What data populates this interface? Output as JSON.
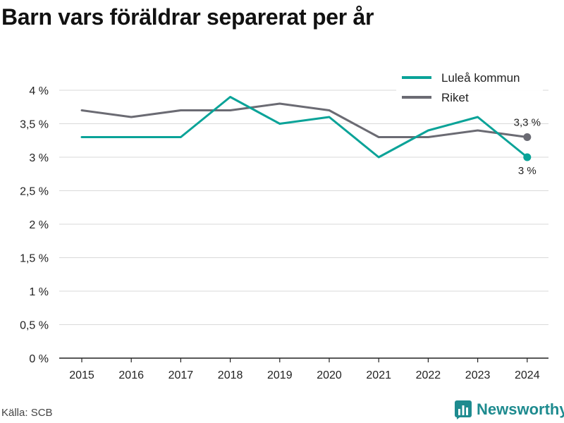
{
  "title": "Barn vars föräldrar separerat per år",
  "source": "Källa: SCB",
  "brand": "Newsworthy",
  "colors": {
    "series_lulea": "#0aa398",
    "series_riket": "#6b6b73",
    "grid": "#d9d9d9",
    "axis": "#222222",
    "brand": "#1e8b8f"
  },
  "chart_data": {
    "type": "line",
    "x": [
      2015,
      2016,
      2017,
      2018,
      2019,
      2020,
      2021,
      2022,
      2023,
      2024
    ],
    "ylim": [
      0,
      4
    ],
    "yticks": [
      0,
      0.5,
      1,
      1.5,
      2,
      2.5,
      3,
      3.5,
      4
    ],
    "ytick_labels": [
      "0 %",
      "0,5 %",
      "1 %",
      "1,5 %",
      "2 %",
      "2,5 %",
      "3 %",
      "3,5 %",
      "4 %"
    ],
    "grid": true,
    "legend_position": "top-right",
    "series": [
      {
        "name": "Luleå kommun",
        "values": [
          3.3,
          3.3,
          3.3,
          3.9,
          3.5,
          3.6,
          3.0,
          3.4,
          3.6,
          3.0
        ],
        "end_label": "3 %"
      },
      {
        "name": "Riket",
        "values": [
          3.7,
          3.6,
          3.7,
          3.7,
          3.8,
          3.7,
          3.3,
          3.3,
          3.4,
          3.3
        ],
        "end_label": "3,3 %"
      }
    ]
  }
}
